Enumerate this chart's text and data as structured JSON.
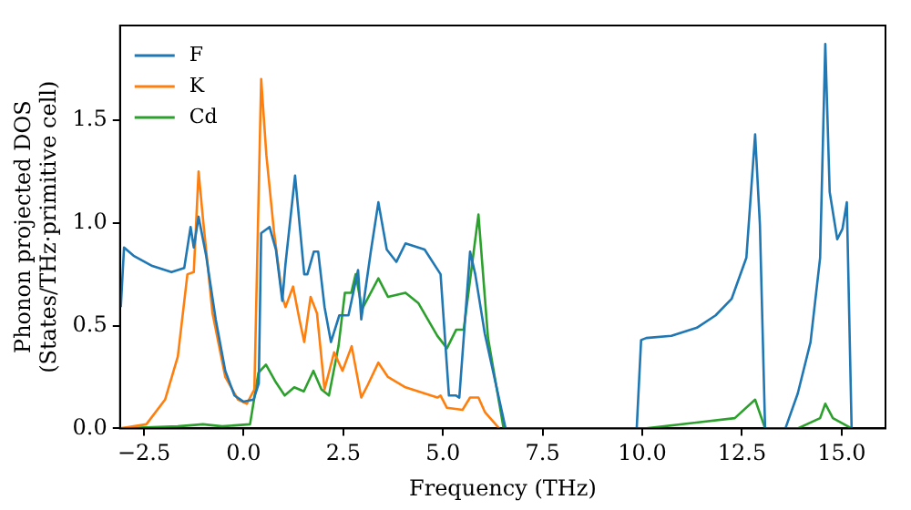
{
  "chart_data": {
    "type": "line",
    "xlabel": "Frequency (THz)",
    "ylabel": "Phonon projected DOS\n(States/THz·primitive cell)",
    "xlim": [
      -3.1,
      16.1
    ],
    "ylim": [
      0,
      1.96
    ],
    "xticks": [
      {
        "value": -2.5,
        "label": "−2.5"
      },
      {
        "value": 0,
        "label": "0.0"
      },
      {
        "value": 2.5,
        "label": "2.5"
      },
      {
        "value": 5,
        "label": "5.0"
      },
      {
        "value": 7.5,
        "label": "7.5"
      },
      {
        "value": 10,
        "label": "10.0"
      },
      {
        "value": 12.5,
        "label": "12.5"
      },
      {
        "value": 15,
        "label": "15.0"
      }
    ],
    "yticks": [
      {
        "value": 0,
        "label": "0.0"
      },
      {
        "value": 0.5,
        "label": "0.5"
      },
      {
        "value": 1,
        "label": "1.0"
      },
      {
        "value": 1.5,
        "label": "1.5"
      }
    ],
    "grid": false,
    "legend": "top left",
    "marker": "none",
    "line_style": "solid",
    "series": [
      {
        "name": "F",
        "color": "#1f77b4",
        "x": [
          -3.08,
          -3.0,
          -2.76,
          -2.29,
          -1.81,
          -1.49,
          -1.33,
          -1.25,
          -1.13,
          -0.94,
          -0.7,
          -0.46,
          -0.23,
          0,
          0.25,
          0.38,
          0.44,
          0.65,
          0.81,
          0.97,
          1.05,
          1.29,
          1.52,
          1.6,
          1.76,
          1.87,
          2.03,
          2.19,
          2.4,
          2.63,
          2.87,
          2.95,
          3.19,
          3.38,
          3.59,
          3.83,
          4.06,
          4.54,
          4.94,
          5.15,
          5.33,
          5.41,
          5.68,
          5.81,
          6.05,
          6.57,
          9.86,
          9.97,
          10.1,
          10.73,
          11.37,
          11.84,
          12.24,
          12.61,
          12.83,
          12.95,
          13.08,
          13.59,
          13.9,
          14.22,
          14.46,
          14.59,
          14.7,
          14.89,
          15.02,
          15.13,
          15.25
        ],
        "values": [
          0.59,
          0.88,
          0.84,
          0.79,
          0.76,
          0.78,
          0.98,
          0.88,
          1.03,
          0.84,
          0.53,
          0.28,
          0.16,
          0.13,
          0.14,
          0.22,
          0.95,
          0.98,
          0.87,
          0.62,
          0.8,
          1.23,
          0.75,
          0.75,
          0.86,
          0.86,
          0.59,
          0.42,
          0.55,
          0.55,
          0.77,
          0.53,
          0.86,
          1.1,
          0.87,
          0.81,
          0.9,
          0.87,
          0.75,
          0.16,
          0.16,
          0.15,
          0.86,
          0.75,
          0.46,
          0,
          0,
          0.43,
          0.44,
          0.45,
          0.49,
          0.55,
          0.63,
          0.83,
          1.43,
          0.99,
          0,
          0,
          0.17,
          0.42,
          0.83,
          1.87,
          1.15,
          0.92,
          0.97,
          1.1,
          0
        ]
      },
      {
        "name": "K",
        "color": "#ff7f0e",
        "x": [
          -3.08,
          -2.44,
          -1.97,
          -1.65,
          -1.41,
          -1.25,
          -1.13,
          -1.02,
          -0.78,
          -0.46,
          -0.14,
          0.08,
          0.27,
          0.44,
          0.57,
          0.76,
          0.97,
          1.05,
          1.24,
          1.4,
          1.52,
          1.68,
          1.84,
          2.03,
          2.27,
          2.48,
          2.71,
          2.95,
          3.11,
          3.38,
          3.62,
          4.06,
          4.86,
          4.94,
          5.1,
          5.49,
          5.68,
          5.89,
          6.05,
          6.41
        ],
        "values": [
          0,
          0.02,
          0.14,
          0.35,
          0.75,
          0.76,
          1.25,
          1.02,
          0.56,
          0.25,
          0.14,
          0.12,
          0.19,
          1.7,
          1.33,
          0.96,
          0.64,
          0.59,
          0.69,
          0.53,
          0.42,
          0.64,
          0.56,
          0.19,
          0.37,
          0.28,
          0.4,
          0.15,
          0.21,
          0.32,
          0.25,
          0.2,
          0.15,
          0.16,
          0.1,
          0.09,
          0.15,
          0.15,
          0.08,
          0
        ]
      },
      {
        "name": "Cd",
        "color": "#2ca02c",
        "x": [
          -3.08,
          -1.65,
          -1.02,
          -0.54,
          0.16,
          0.37,
          0.56,
          0.79,
          1.03,
          1.27,
          1.51,
          1.75,
          1.95,
          2.14,
          2.38,
          2.54,
          2.7,
          2.81,
          2.97,
          3.38,
          3.62,
          4.06,
          4.38,
          4.86,
          5.1,
          5.33,
          5.52,
          5.89,
          6.13,
          6.52,
          10.1,
          12.32,
          12.83,
          13.08,
          13.9,
          14.46,
          14.59,
          14.78,
          15.25
        ],
        "values": [
          0,
          0.01,
          0.02,
          0.01,
          0.02,
          0.27,
          0.31,
          0.23,
          0.16,
          0.2,
          0.18,
          0.28,
          0.19,
          0.16,
          0.4,
          0.66,
          0.66,
          0.75,
          0.58,
          0.73,
          0.64,
          0.66,
          0.61,
          0.45,
          0.39,
          0.48,
          0.48,
          1.04,
          0.44,
          0,
          0,
          0.05,
          0.14,
          0,
          0,
          0.05,
          0.12,
          0.05,
          0
        ]
      }
    ]
  }
}
